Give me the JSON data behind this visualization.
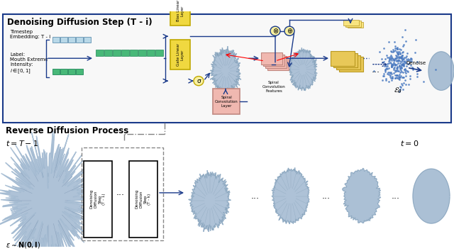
{
  "bg_color": "#ffffff",
  "top_box_border": "#1a3a8a",
  "top_box_bg": "#f8f8f8",
  "top_title": "Denoising Diffusion Step (T - i)",
  "bottom_title": "Reverse Diffusion Process",
  "yellow_box_color": "#f0d840",
  "yellow_box_border": "#c0a800",
  "pink_box_color": "#f0b8b0",
  "pink_box_border": "#c08880",
  "gold_box_color": "#e8c858",
  "gold_box_border": "#b89820",
  "embed_bar_color": "#b8d8e8",
  "embed_bar_border": "#6090b0",
  "label_bar_color": "#48b878",
  "label_bar_border": "#208858",
  "concat_bar_color": "#48b878",
  "face_color": "#a0b8d0",
  "face_shadow": "#7898b0",
  "arrow_color": "#1a3a8a",
  "noise_color": "#4878c0",
  "op_circle_color": "#f8f0a0",
  "t0_label": "t = 0",
  "tT_label": "t = T-1",
  "eps_label": "$\\epsilon \\sim \\mathbf{N}(\\mathbf{0},\\mathbf{I})$",
  "eps_theta_label": "$\\mathcal{E}_\\theta$",
  "denoise_label": "Denoise"
}
